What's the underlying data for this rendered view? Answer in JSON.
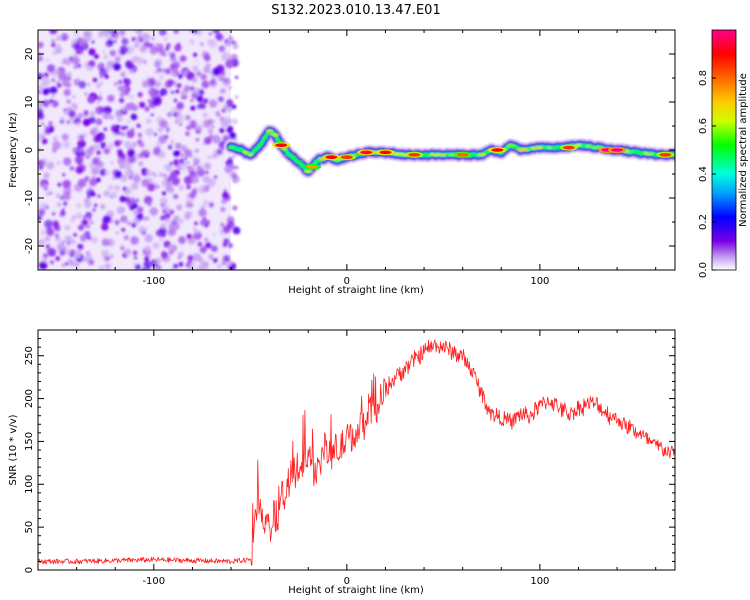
{
  "title": "S132.2023.010.13.47.E01",
  "colorbar": {
    "label": "Normalized spectral amplitude",
    "ticks": [
      0.0,
      0.2,
      0.4,
      0.6,
      0.8
    ],
    "tick_labels": [
      "0.0",
      "0.2",
      "0.4",
      "0.6",
      "0.8"
    ],
    "range": [
      0.0,
      1.0
    ],
    "colors": [
      "#ffffff",
      "#c9a6f2",
      "#7a00e6",
      "#0000ff",
      "#00a0ff",
      "#00ffdd",
      "#00ff00",
      "#ccff00",
      "#ffcc00",
      "#ff6600",
      "#ff0000",
      "#ff0088"
    ]
  },
  "chart_data": [
    {
      "type": "heatmap",
      "title": "S132.2023.010.13.47.E01",
      "xlabel": "Height of straight line (km)",
      "ylabel": "Frequency (Hz)",
      "xlim": [
        -160,
        170
      ],
      "ylim": [
        -25,
        25
      ],
      "x_ticks": [
        -100,
        0,
        100
      ],
      "x_tick_labels": [
        "-100",
        "0",
        "100"
      ],
      "y_ticks": [
        -20,
        -10,
        0,
        10,
        20
      ],
      "y_tick_labels": [
        "-20",
        "-10",
        "0",
        "10",
        "20"
      ],
      "noise_region_x": [
        -160,
        -60
      ],
      "ridge": {
        "x": [
          -60,
          -55,
          -50,
          -45,
          -40,
          -37,
          -34,
          -30,
          -25,
          -20,
          -17,
          -14,
          -10,
          -5,
          0,
          10,
          20,
          30,
          40,
          50,
          60,
          70,
          75,
          80,
          85,
          90,
          100,
          110,
          120,
          130,
          140,
          150,
          160,
          170
        ],
        "y": [
          0.5,
          0,
          -1,
          1,
          4,
          3,
          1,
          -1,
          -2.5,
          -4.5,
          -3,
          -2,
          -1.5,
          -2,
          -1.5,
          -0.5,
          -0.5,
          -1,
          -1,
          -1,
          -1,
          -1,
          0,
          -0.5,
          1,
          0,
          0.5,
          0.5,
          1,
          0.5,
          0,
          -0.5,
          -1,
          -1
        ]
      },
      "ridge_peaks": [
        {
          "x": -34,
          "y": 1,
          "amp": 0.9
        },
        {
          "x": -18,
          "y": -3.5,
          "amp": 0.75
        },
        {
          "x": -8,
          "y": -1.5,
          "amp": 0.9
        },
        {
          "x": 0,
          "y": -1.5,
          "amp": 0.85
        },
        {
          "x": 10,
          "y": -0.5,
          "amp": 0.95
        },
        {
          "x": 20,
          "y": -0.5,
          "amp": 0.9
        },
        {
          "x": 35,
          "y": -1,
          "amp": 0.85
        },
        {
          "x": 60,
          "y": -1,
          "amp": 0.8
        },
        {
          "x": 78,
          "y": 0,
          "amp": 0.9
        },
        {
          "x": 115,
          "y": 0.5,
          "amp": 0.85
        },
        {
          "x": 135,
          "y": 0,
          "amp": 1.0
        },
        {
          "x": 140,
          "y": 0,
          "amp": 1.0
        },
        {
          "x": 165,
          "y": -1,
          "amp": 0.85
        }
      ]
    },
    {
      "type": "line",
      "xlabel": "Height of straight line (km)",
      "ylabel": "SNR (10 * v/v)",
      "xlim": [
        -160,
        170
      ],
      "ylim": [
        0,
        280
      ],
      "x_ticks": [
        -100,
        0,
        100
      ],
      "x_tick_labels": [
        "-100",
        "0",
        "100"
      ],
      "y_ticks": [
        0,
        50,
        100,
        150,
        200,
        250
      ],
      "y_tick_labels": [
        "0",
        "50",
        "100",
        "150",
        "200",
        "250"
      ],
      "series": [
        {
          "color": "#ff2020",
          "x": [
            -160,
            -140,
            -120,
            -100,
            -80,
            -60,
            -50,
            -46,
            -44,
            -42,
            -40,
            -38,
            -36,
            -34,
            -32,
            -30,
            -28,
            -25,
            -22,
            -20,
            -18,
            -15,
            -12,
            -10,
            -5,
            0,
            5,
            10,
            15,
            20,
            25,
            30,
            35,
            40,
            45,
            50,
            55,
            60,
            65,
            70,
            75,
            80,
            85,
            90,
            95,
            100,
            105,
            110,
            115,
            120,
            125,
            130,
            135,
            140,
            145,
            150,
            155,
            160,
            165,
            170
          ],
          "y": [
            10,
            10,
            11,
            12,
            11,
            10,
            12,
            75,
            55,
            65,
            45,
            70,
            50,
            95,
            80,
            105,
            110,
            120,
            125,
            140,
            120,
            115,
            145,
            135,
            140,
            150,
            160,
            175,
            190,
            210,
            225,
            235,
            245,
            255,
            262,
            260,
            255,
            248,
            232,
            205,
            182,
            178,
            172,
            182,
            180,
            192,
            198,
            190,
            182,
            188,
            195,
            192,
            182,
            176,
            168,
            162,
            152,
            145,
            140,
            135
          ]
        }
      ]
    }
  ]
}
